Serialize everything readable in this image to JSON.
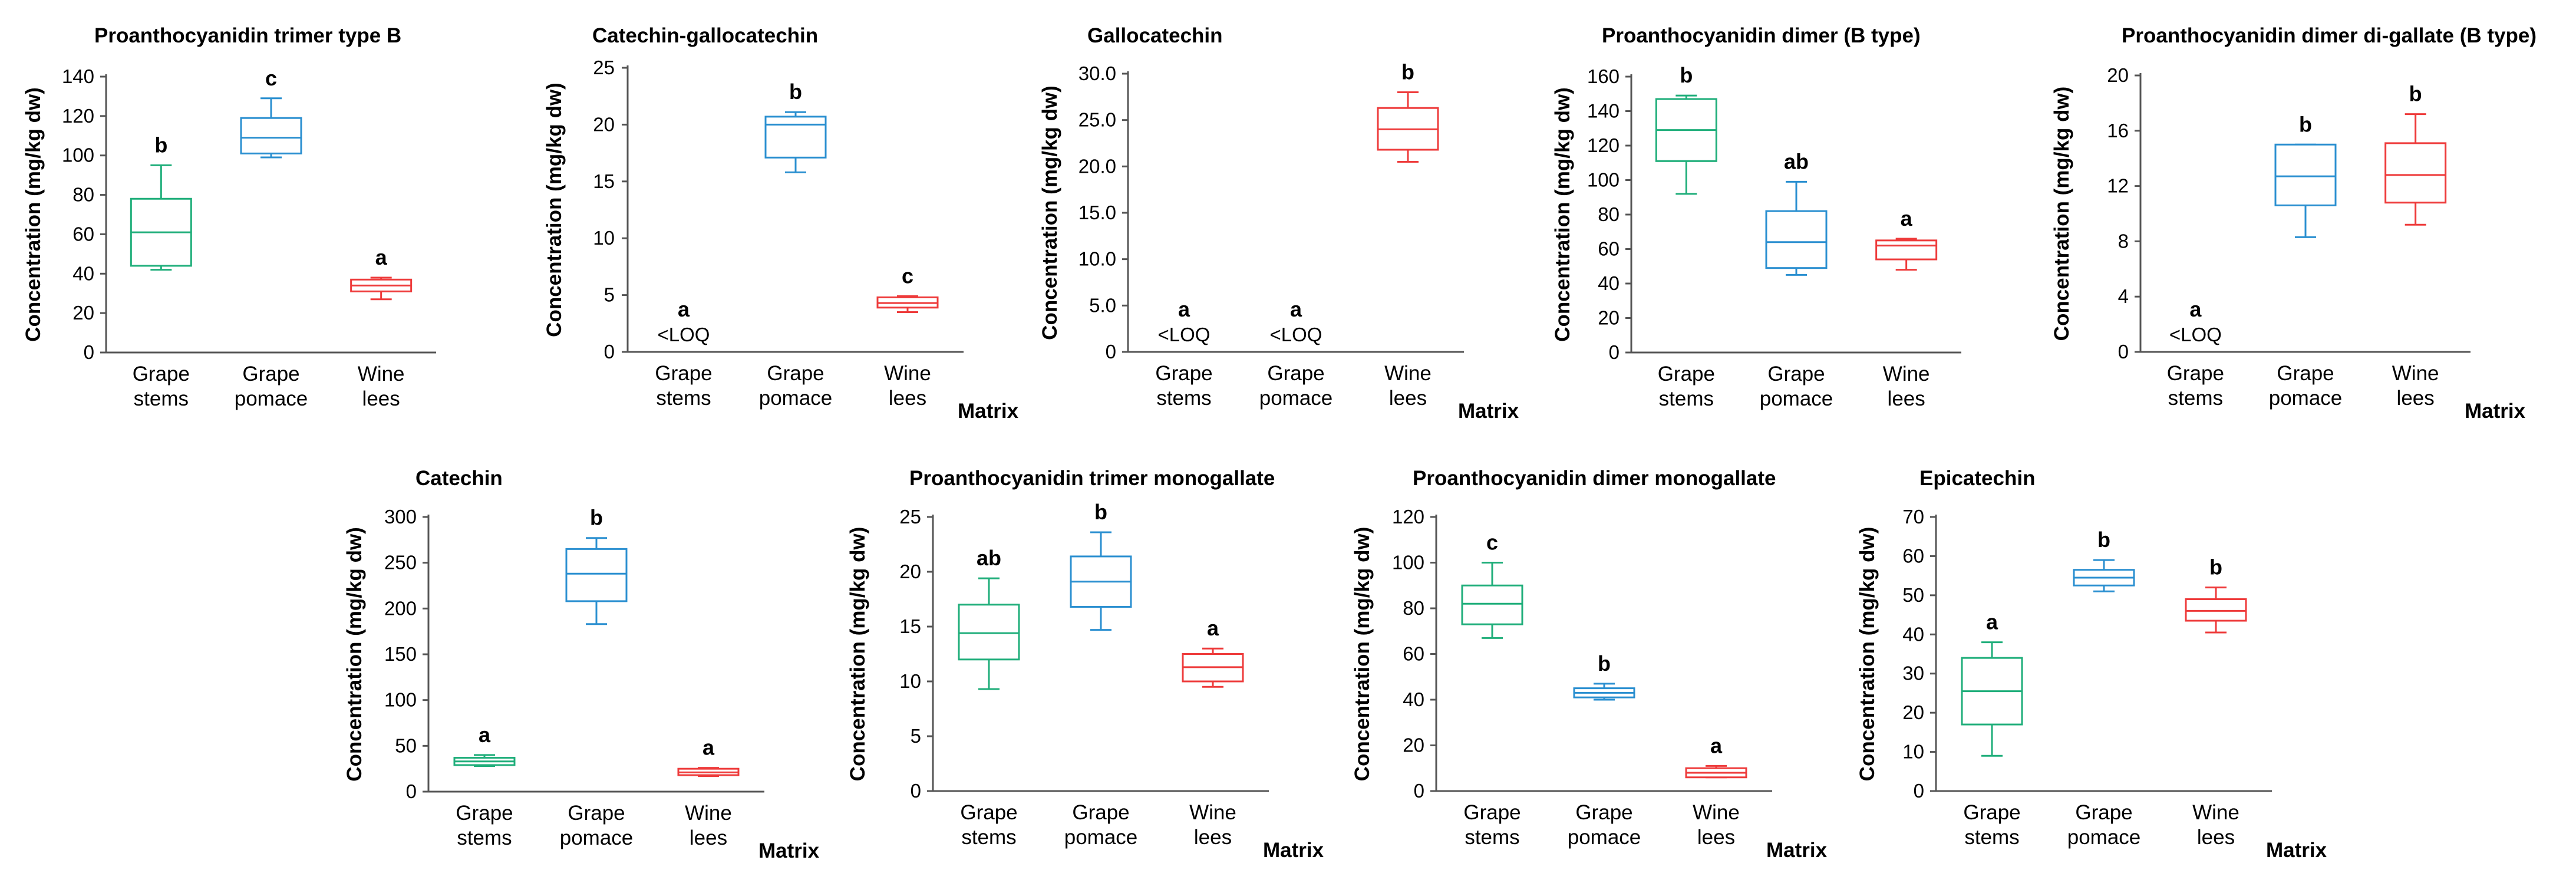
{
  "colors": {
    "stems": "#1fae7a",
    "pomace": "#2a8fd0",
    "lees": "#ee3b3b"
  },
  "chart_data": [
    {
      "type": "box",
      "title": "Proanthocyanidin trimer type B",
      "ylabel": "Concentration (mg/kg dw)",
      "xlabel": "",
      "ylim": [
        0,
        140
      ],
      "yticks": [
        "0",
        "20",
        "40",
        "60",
        "80",
        "100",
        "120",
        "140"
      ],
      "categories": [
        [
          "Grape",
          "stems"
        ],
        [
          "Grape",
          "pomace"
        ],
        [
          "Wine",
          "lees"
        ]
      ],
      "boxes": [
        {
          "min": 42,
          "q1": 44,
          "median": 61,
          "q3": 78,
          "max": 95,
          "letter": "b"
        },
        {
          "min": 99,
          "q1": 101,
          "median": 109,
          "q3": 119,
          "max": 129,
          "letter": "c"
        },
        {
          "min": 27,
          "q1": 31,
          "median": 34,
          "q3": 37,
          "max": 38,
          "letter": "a"
        }
      ]
    },
    {
      "type": "box",
      "title": "Catechin-gallocatechin",
      "ylabel": "Concentration (mg/kg dw)",
      "xlabel": "Matrix",
      "ylim": [
        0,
        25
      ],
      "yticks": [
        "0",
        "5",
        "10",
        "15",
        "20",
        "25"
      ],
      "categories": [
        [
          "Grape",
          "stems"
        ],
        [
          "Grape",
          "pomace"
        ],
        [
          "Wine",
          "lees"
        ]
      ],
      "boxes": [
        {
          "loq": true,
          "loq_label": "<LOQ",
          "letter": "a"
        },
        {
          "min": 15.8,
          "q1": 17.1,
          "median": 20.0,
          "q3": 20.7,
          "max": 21.1,
          "letter": "b"
        },
        {
          "min": 3.5,
          "q1": 3.9,
          "median": 4.3,
          "q3": 4.8,
          "max": 4.9,
          "letter": "c"
        }
      ]
    },
    {
      "type": "box",
      "title": "Gallocatechin",
      "ylabel": "Concentration (mg/kg dw)",
      "xlabel": "Matrix",
      "ylim": [
        0,
        30
      ],
      "yticks": [
        "0",
        "5.0",
        "10.0",
        "15.0",
        "20.0",
        "25.0",
        "30.0"
      ],
      "categories": [
        [
          "Grape",
          "stems"
        ],
        [
          "Grape",
          "pomace"
        ],
        [
          "Wine",
          "lees"
        ]
      ],
      "boxes": [
        {
          "loq": true,
          "loq_label": "<LOQ",
          "letter": "a"
        },
        {
          "loq": true,
          "loq_label": "<LOQ",
          "letter": "a"
        },
        {
          "min": 20.5,
          "q1": 21.8,
          "median": 24.0,
          "q3": 26.3,
          "max": 28.0,
          "letter": "b"
        }
      ]
    },
    {
      "type": "box",
      "title": "Proanthocyanidin dimer (B type)",
      "ylabel": "Concentration (mg/kg dw)",
      "xlabel": "",
      "ylim": [
        0,
        160
      ],
      "yticks": [
        "0",
        "20",
        "40",
        "60",
        "80",
        "100",
        "120",
        "140",
        "160"
      ],
      "categories": [
        [
          "Grape",
          "stems"
        ],
        [
          "Grape",
          "pomace"
        ],
        [
          "Wine",
          "lees"
        ]
      ],
      "boxes": [
        {
          "min": 92,
          "q1": 111,
          "median": 129,
          "q3": 147,
          "max": 149,
          "letter": "b"
        },
        {
          "min": 45,
          "q1": 49,
          "median": 64,
          "q3": 82,
          "max": 99,
          "letter": "ab"
        },
        {
          "min": 48,
          "q1": 54,
          "median": 62,
          "q3": 65,
          "max": 66,
          "letter": "a"
        }
      ]
    },
    {
      "type": "box",
      "title": "Proanthocyanidin dimer di-gallate (B type)",
      "ylabel": "Concentration (mg/kg dw)",
      "xlabel": "Matrix",
      "ylim": [
        0,
        20
      ],
      "yticks": [
        "0",
        "4",
        "8",
        "12",
        "16",
        "20"
      ],
      "categories": [
        [
          "Grape",
          "stems"
        ],
        [
          "Grape",
          "pomace"
        ],
        [
          "Wine",
          "lees"
        ]
      ],
      "boxes": [
        {
          "loq": true,
          "loq_label": "<LOQ",
          "letter": "a"
        },
        {
          "min": 8.3,
          "q1": 10.6,
          "median": 12.7,
          "q3": 15.0,
          "max": 15.0,
          "letter": "b"
        },
        {
          "min": 9.2,
          "q1": 10.8,
          "median": 12.8,
          "q3": 15.1,
          "max": 17.2,
          "letter": "b"
        }
      ]
    },
    {
      "type": "box",
      "title": "Catechin",
      "ylabel": "Concentration (mg/kg dw)",
      "xlabel": "Matrix",
      "ylim": [
        0,
        300
      ],
      "yticks": [
        "0",
        "50",
        "100",
        "150",
        "200",
        "250",
        "300"
      ],
      "categories": [
        [
          "Grape",
          "stems"
        ],
        [
          "Grape",
          "pomace"
        ],
        [
          "Wine",
          "lees"
        ]
      ],
      "boxes": [
        {
          "min": 28,
          "q1": 29,
          "median": 33,
          "q3": 37,
          "max": 40,
          "letter": "a"
        },
        {
          "min": 183,
          "q1": 208,
          "median": 238,
          "q3": 265,
          "max": 277,
          "letter": "b"
        },
        {
          "min": 17,
          "q1": 18,
          "median": 21,
          "q3": 25,
          "max": 26,
          "letter": "a"
        }
      ]
    },
    {
      "type": "box",
      "title": "Proanthocyanidin trimer monogallate",
      "ylabel": "Concentration (mg/kg dw)",
      "xlabel": "Matrix",
      "ylim": [
        0,
        25
      ],
      "yticks": [
        "0",
        "5",
        "10",
        "15",
        "20",
        "25"
      ],
      "categories": [
        [
          "Grape",
          "stems"
        ],
        [
          "Grape",
          "pomace"
        ],
        [
          "Wine",
          "lees"
        ]
      ],
      "boxes": [
        {
          "min": 9.3,
          "q1": 12.0,
          "median": 14.4,
          "q3": 17.0,
          "max": 19.4,
          "letter": "ab"
        },
        {
          "min": 14.7,
          "q1": 16.8,
          "median": 19.1,
          "q3": 21.4,
          "max": 23.6,
          "letter": "b"
        },
        {
          "min": 9.5,
          "q1": 10.0,
          "median": 11.3,
          "q3": 12.5,
          "max": 13.0,
          "letter": "a"
        }
      ]
    },
    {
      "type": "box",
      "title": "Proanthocyanidin dimer monogallate",
      "ylabel": "Concentration (mg/kg dw)",
      "xlabel": "Matrix",
      "ylim": [
        0,
        120
      ],
      "yticks": [
        "0",
        "20",
        "40",
        "60",
        "80",
        "100",
        "120"
      ],
      "categories": [
        [
          "Grape",
          "stems"
        ],
        [
          "Grape",
          "pomace"
        ],
        [
          "Wine",
          "lees"
        ]
      ],
      "boxes": [
        {
          "min": 67,
          "q1": 73,
          "median": 82,
          "q3": 90,
          "max": 100,
          "letter": "c"
        },
        {
          "min": 40,
          "q1": 41,
          "median": 43,
          "q3": 45,
          "max": 47,
          "letter": "b"
        },
        {
          "min": 6,
          "q1": 6,
          "median": 8,
          "q3": 10,
          "max": 11,
          "letter": "a"
        }
      ]
    },
    {
      "type": "box",
      "title": "Epicatechin",
      "ylabel": "Concentration (mg/kg dw)",
      "xlabel": "Matrix",
      "ylim": [
        0,
        70
      ],
      "yticks": [
        "0",
        "10",
        "20",
        "30",
        "40",
        "50",
        "60",
        "70"
      ],
      "categories": [
        [
          "Grape",
          "stems"
        ],
        [
          "Grape",
          "pomace"
        ],
        [
          "Wine",
          "lees"
        ]
      ],
      "boxes": [
        {
          "min": 9,
          "q1": 17,
          "median": 25.5,
          "q3": 34,
          "max": 38,
          "letter": "a"
        },
        {
          "min": 51,
          "q1": 52.5,
          "median": 54.5,
          "q3": 56.5,
          "max": 59,
          "letter": "b"
        },
        {
          "min": 40.5,
          "q1": 43.5,
          "median": 46,
          "q3": 49,
          "max": 52,
          "letter": "b"
        }
      ]
    }
  ]
}
